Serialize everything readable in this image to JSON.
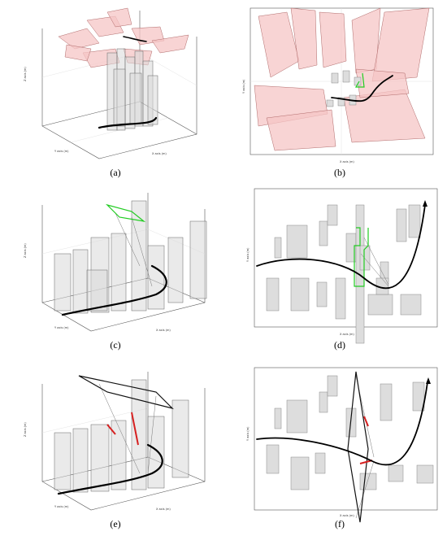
{
  "panels": [
    {
      "id": "a",
      "caption": "(a)",
      "kind": "3d-wide"
    },
    {
      "id": "b",
      "caption": "(b)",
      "kind": "2d-wide"
    },
    {
      "id": "c",
      "caption": "(c)",
      "kind": "3d-green"
    },
    {
      "id": "d",
      "caption": "(d)",
      "kind": "2d-green"
    },
    {
      "id": "e",
      "caption": "(e)",
      "kind": "3d-black"
    },
    {
      "id": "f",
      "caption": "(f)",
      "kind": "2d-black"
    }
  ],
  "colors": {
    "building": "#d8d8d8",
    "pink_region": "#f6c6c6",
    "green_fov": "#22cc22",
    "red_segment": "#d62020",
    "trajectory": "#000000"
  }
}
